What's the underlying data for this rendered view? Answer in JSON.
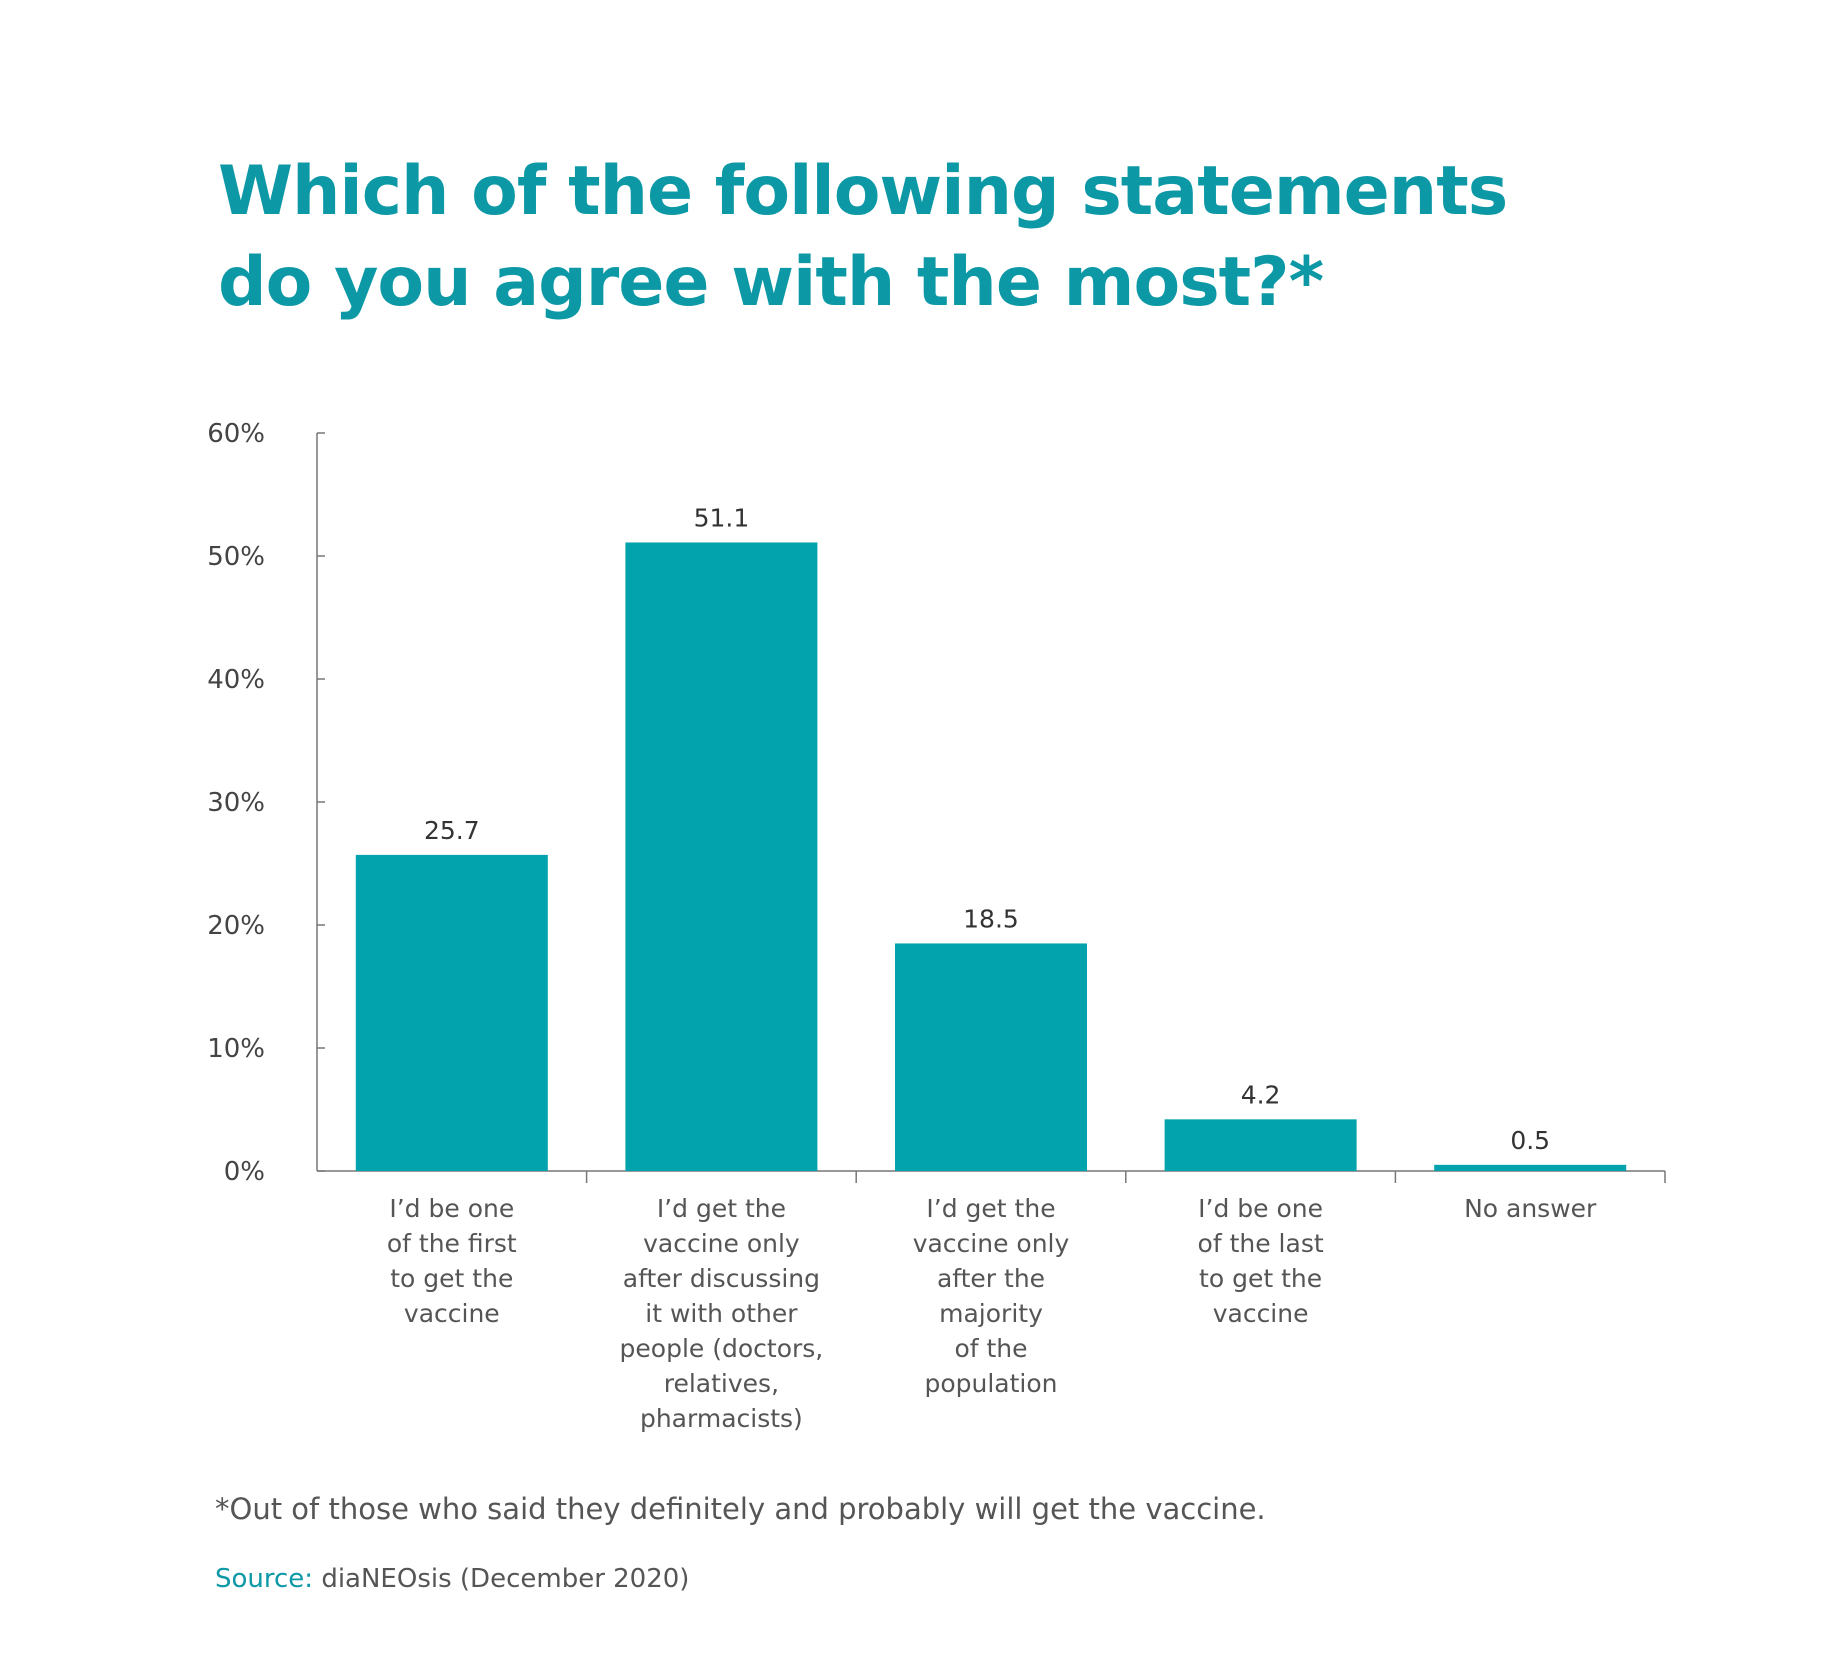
{
  "header": {
    "title_line1": "Which of the following statements",
    "title_line2": "do you agree with the most?*"
  },
  "footer": {
    "footnote": "*Out of those who said they definitely and probably will get the vaccine.",
    "source_label": "Source:",
    "source_text": " diaNEOsis (December 2020)"
  },
  "colors": {
    "accent": "#0d98a6",
    "bar": "#02a3ad",
    "axis": "#777777",
    "text": "#333333"
  },
  "chart_data": {
    "type": "bar",
    "title": "Which of the following statements do you agree with the most?*",
    "categories": [
      [
        "I’d be one",
        "of the first",
        "to get the",
        "vaccine"
      ],
      [
        "I’d get the",
        "vaccine only",
        "after discussing",
        "it with other",
        "people (doctors,",
        "relatives,",
        "pharmacists)"
      ],
      [
        "I’d get the",
        "vaccine only",
        "after the",
        "majority",
        "of the",
        "population"
      ],
      [
        "I’d be one",
        "of the last",
        "to get the",
        "vaccine"
      ],
      [
        "No answer"
      ]
    ],
    "values": [
      25.7,
      51.1,
      18.5,
      4.2,
      0.5
    ],
    "value_labels": [
      "25.7",
      "51.1",
      "18.5",
      "4.2",
      "0.5"
    ],
    "yticks": [
      0,
      10,
      20,
      30,
      40,
      50,
      60
    ],
    "ytick_labels": [
      "0%",
      "10%",
      "20%",
      "30%",
      "40%",
      "50%",
      "60%"
    ],
    "ylim": [
      0,
      60
    ],
    "xlabel": "",
    "ylabel": "",
    "grid": false,
    "legend": "none"
  }
}
